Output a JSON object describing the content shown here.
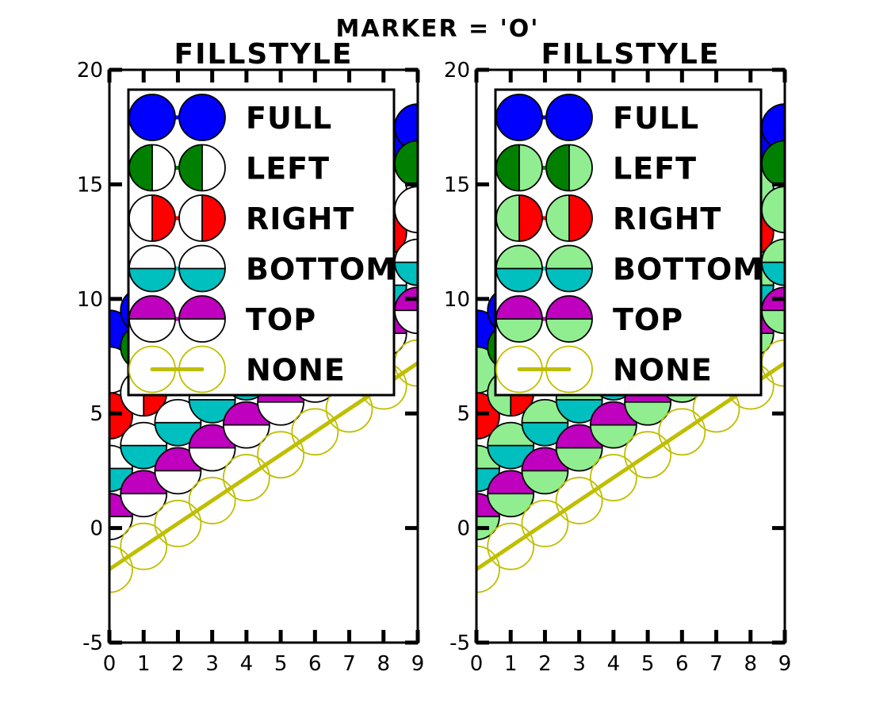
{
  "figure": {
    "suptitle": "MARKER = 'O'"
  },
  "chart_data": [
    {
      "type": "line",
      "title": "FILLSTYLE",
      "xlim": [
        0,
        9
      ],
      "ylim": [
        -5,
        20
      ],
      "xticks": [
        0,
        1,
        2,
        3,
        4,
        5,
        6,
        7,
        8,
        9
      ],
      "yticks": [
        -5,
        0,
        5,
        10,
        15,
        20
      ],
      "grid": false,
      "legend_position": "upper-left",
      "marker": "o",
      "fillstyle_alt_color": "#ffffff",
      "series": [
        {
          "name": "FULL",
          "fillstyle": "full",
          "color": "#0000ff",
          "x": [
            0,
            1,
            2,
            3,
            4,
            5,
            6,
            7,
            8,
            9
          ],
          "y": [
            8.5,
            9.5,
            10.5,
            11.5,
            12.5,
            13.5,
            14.5,
            15.5,
            16.5,
            17.5
          ]
        },
        {
          "name": "LEFT",
          "fillstyle": "left",
          "color": "#008000",
          "x": [
            0,
            1,
            2,
            3,
            4,
            5,
            6,
            7,
            8,
            9
          ],
          "y": [
            6.9,
            7.9,
            8.9,
            9.9,
            10.9,
            11.9,
            12.9,
            13.9,
            14.9,
            15.9
          ]
        },
        {
          "name": "RIGHT",
          "fillstyle": "right",
          "color": "#ff0000",
          "x": [
            0,
            1,
            2,
            3,
            4,
            5,
            6,
            7,
            8,
            9
          ],
          "y": [
            4.9,
            5.9,
            6.9,
            7.9,
            8.9,
            9.9,
            10.9,
            11.9,
            12.9,
            13.9
          ]
        },
        {
          "name": "BOTTOM",
          "fillstyle": "bottom",
          "color": "#00bfbf",
          "x": [
            0,
            1,
            2,
            3,
            4,
            5,
            6,
            7,
            8,
            9
          ],
          "y": [
            2.6,
            3.6,
            4.6,
            5.6,
            6.6,
            7.6,
            8.6,
            9.6,
            10.6,
            11.6
          ]
        },
        {
          "name": "TOP",
          "fillstyle": "top",
          "color": "#bf00bf",
          "x": [
            0,
            1,
            2,
            3,
            4,
            5,
            6,
            7,
            8,
            9
          ],
          "y": [
            0.5,
            1.5,
            2.5,
            3.5,
            4.5,
            5.5,
            6.5,
            7.5,
            8.5,
            9.5
          ]
        },
        {
          "name": "NONE",
          "fillstyle": "none",
          "color": "#bfbf00",
          "x": [
            0,
            1,
            2,
            3,
            4,
            5,
            6,
            7,
            8,
            9
          ],
          "y": [
            -1.8,
            -0.8,
            0.2,
            1.2,
            2.2,
            3.2,
            4.2,
            5.2,
            6.2,
            7.2
          ]
        }
      ]
    },
    {
      "type": "line",
      "title": "FILLSTYLE",
      "xlim": [
        0,
        9
      ],
      "ylim": [
        -5,
        20
      ],
      "xticks": [
        0,
        1,
        2,
        3,
        4,
        5,
        6,
        7,
        8,
        9
      ],
      "yticks": [
        -5,
        0,
        5,
        10,
        15,
        20
      ],
      "grid": false,
      "legend_position": "upper-left",
      "marker": "o",
      "fillstyle_alt_color": "#90ee90",
      "series": [
        {
          "name": "FULL",
          "fillstyle": "full",
          "color": "#0000ff",
          "x": [
            0,
            1,
            2,
            3,
            4,
            5,
            6,
            7,
            8,
            9
          ],
          "y": [
            8.5,
            9.5,
            10.5,
            11.5,
            12.5,
            13.5,
            14.5,
            15.5,
            16.5,
            17.5
          ]
        },
        {
          "name": "LEFT",
          "fillstyle": "left",
          "color": "#008000",
          "x": [
            0,
            1,
            2,
            3,
            4,
            5,
            6,
            7,
            8,
            9
          ],
          "y": [
            6.9,
            7.9,
            8.9,
            9.9,
            10.9,
            11.9,
            12.9,
            13.9,
            14.9,
            15.9
          ]
        },
        {
          "name": "RIGHT",
          "fillstyle": "right",
          "color": "#ff0000",
          "x": [
            0,
            1,
            2,
            3,
            4,
            5,
            6,
            7,
            8,
            9
          ],
          "y": [
            4.9,
            5.9,
            6.9,
            7.9,
            8.9,
            9.9,
            10.9,
            11.9,
            12.9,
            13.9
          ]
        },
        {
          "name": "BOTTOM",
          "fillstyle": "bottom",
          "color": "#00bfbf",
          "x": [
            0,
            1,
            2,
            3,
            4,
            5,
            6,
            7,
            8,
            9
          ],
          "y": [
            2.6,
            3.6,
            4.6,
            5.6,
            6.6,
            7.6,
            8.6,
            9.6,
            10.6,
            11.6
          ]
        },
        {
          "name": "TOP",
          "fillstyle": "top",
          "color": "#bf00bf",
          "x": [
            0,
            1,
            2,
            3,
            4,
            5,
            6,
            7,
            8,
            9
          ],
          "y": [
            0.5,
            1.5,
            2.5,
            3.5,
            4.5,
            5.5,
            6.5,
            7.5,
            8.5,
            9.5
          ]
        },
        {
          "name": "NONE",
          "fillstyle": "none",
          "color": "#bfbf00",
          "x": [
            0,
            1,
            2,
            3,
            4,
            5,
            6,
            7,
            8,
            9
          ],
          "y": [
            -1.8,
            -0.8,
            0.2,
            1.2,
            2.2,
            3.2,
            4.2,
            5.2,
            6.2,
            7.2
          ]
        }
      ]
    }
  ]
}
